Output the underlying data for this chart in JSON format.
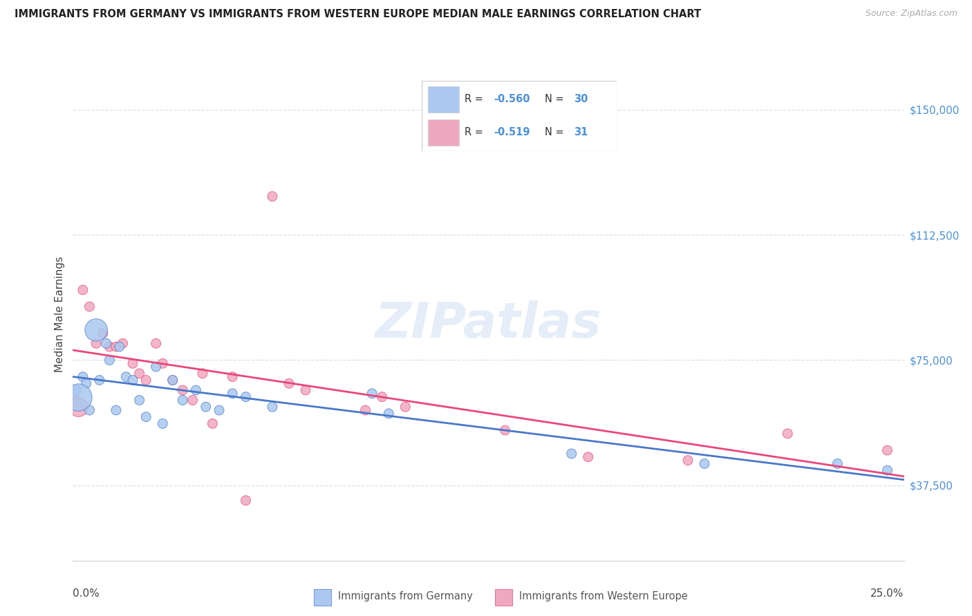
{
  "title": "IMMIGRANTS FROM GERMANY VS IMMIGRANTS FROM WESTERN EUROPE MEDIAN MALE EARNINGS CORRELATION CHART",
  "source": "Source: ZipAtlas.com",
  "ylabel": "Median Male Earnings",
  "ytick_labels": [
    "$37,500",
    "$75,000",
    "$112,500",
    "$150,000"
  ],
  "ytick_values": [
    37500,
    75000,
    112500,
    150000
  ],
  "ymin": 15000,
  "ymax": 162500,
  "xmin": 0.0,
  "xmax": 0.25,
  "legend1_R": "-0.560",
  "legend1_N": "30",
  "legend2_R": "-0.519",
  "legend2_N": "31",
  "blue_color": "#aac8f0",
  "pink_color": "#f0a8c0",
  "line_blue": "#4878c8",
  "line_pink": "#e84878",
  "watermark": "ZIPatlas",
  "bottom_label1": "Immigrants from Germany",
  "bottom_label2": "Immigrants from Western Europe",
  "germany_x": [
    0.001,
    0.003,
    0.004,
    0.005,
    0.007,
    0.008,
    0.01,
    0.011,
    0.013,
    0.014,
    0.016,
    0.018,
    0.02,
    0.022,
    0.025,
    0.027,
    0.03,
    0.033,
    0.037,
    0.04,
    0.044,
    0.048,
    0.052,
    0.06,
    0.09,
    0.095,
    0.15,
    0.19,
    0.23,
    0.245
  ],
  "germany_y": [
    66000,
    70000,
    68000,
    60000,
    84000,
    69000,
    80000,
    75000,
    60000,
    79000,
    70000,
    69000,
    63000,
    58000,
    73000,
    56000,
    69000,
    63000,
    66000,
    61000,
    60000,
    65000,
    64000,
    61000,
    65000,
    59000,
    47000,
    44000,
    44000,
    42000
  ],
  "germany_size": [
    100,
    100,
    100,
    100,
    550,
    100,
    100,
    100,
    100,
    100,
    100,
    100,
    100,
    100,
    100,
    100,
    100,
    100,
    100,
    100,
    100,
    100,
    100,
    100,
    100,
    100,
    100,
    100,
    100,
    100
  ],
  "western_x": [
    0.001,
    0.003,
    0.005,
    0.007,
    0.009,
    0.011,
    0.013,
    0.015,
    0.018,
    0.02,
    0.022,
    0.025,
    0.027,
    0.03,
    0.033,
    0.036,
    0.039,
    0.042,
    0.048,
    0.052,
    0.06,
    0.065,
    0.07,
    0.088,
    0.093,
    0.1,
    0.13,
    0.155,
    0.185,
    0.215,
    0.245
  ],
  "western_y": [
    63000,
    96000,
    91000,
    80000,
    83000,
    79000,
    79000,
    80000,
    74000,
    71000,
    69000,
    80000,
    74000,
    69000,
    66000,
    63000,
    71000,
    56000,
    70000,
    33000,
    124000,
    68000,
    66000,
    60000,
    64000,
    61000,
    54000,
    46000,
    45000,
    53000,
    48000
  ],
  "western_size": [
    100,
    100,
    100,
    100,
    100,
    100,
    100,
    100,
    100,
    100,
    100,
    100,
    100,
    100,
    100,
    100,
    100,
    100,
    100,
    100,
    100,
    100,
    100,
    100,
    100,
    100,
    100,
    100,
    100,
    100,
    100
  ]
}
